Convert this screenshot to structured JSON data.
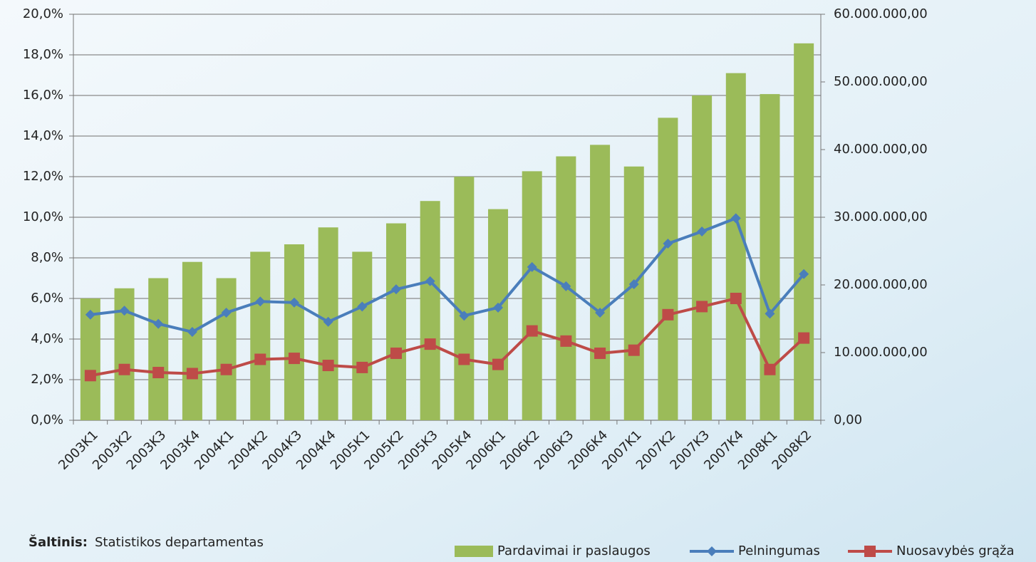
{
  "chart_data": {
    "type": "bar-line",
    "categories": [
      "2003K1",
      "2003K2",
      "2003K3",
      "2003K4",
      "2004K1",
      "2004K2",
      "2004K3",
      "2004K4",
      "2005K1",
      "2005K2",
      "2005K3",
      "2005K4",
      "2006K1",
      "2006K2",
      "2006K3",
      "2006K4",
      "2007K1",
      "2007K2",
      "2007K3",
      "2007K4",
      "2008K1",
      "2008K2"
    ],
    "series": [
      {
        "name": "Pardavimai ir paslaugos",
        "type": "bar",
        "axis": "y2",
        "color": "#9bbb59",
        "values": [
          18000000,
          19500000,
          21000000,
          23400000,
          21000000,
          24900000,
          26000000,
          28500000,
          24900000,
          29100000,
          32400000,
          36000000,
          31200000,
          36800000,
          39000000,
          40700000,
          37500000,
          44700000,
          48000000,
          51300000,
          48200000,
          55700000
        ]
      },
      {
        "name": "Pelningumas",
        "type": "line",
        "axis": "y",
        "color": "#4a7ebb",
        "marker": "diamond",
        "values": [
          5.2,
          5.4,
          4.75,
          4.35,
          5.3,
          5.85,
          5.8,
          4.85,
          5.6,
          6.45,
          6.85,
          5.15,
          5.55,
          7.55,
          6.6,
          5.3,
          6.7,
          8.7,
          9.3,
          9.95,
          5.25,
          7.2
        ]
      },
      {
        "name": "Nuosavybės grąža",
        "type": "line",
        "axis": "y",
        "color": "#be4b48",
        "marker": "square",
        "values": [
          2.2,
          2.5,
          2.35,
          2.3,
          2.5,
          3.0,
          3.05,
          2.7,
          2.6,
          3.3,
          3.75,
          3.0,
          2.75,
          4.4,
          3.9,
          3.3,
          3.45,
          5.2,
          5.6,
          6.0,
          2.5,
          4.05
        ]
      }
    ],
    "ylim": [
      0,
      20
    ],
    "yticks": [
      {
        "value": 0,
        "label": "0,0%"
      },
      {
        "value": 2,
        "label": "2,0%"
      },
      {
        "value": 4,
        "label": "4,0%"
      },
      {
        "value": 6,
        "label": "6,0%"
      },
      {
        "value": 8,
        "label": "8,0%"
      },
      {
        "value": 10,
        "label": "10,0%"
      },
      {
        "value": 12,
        "label": "12,0%"
      },
      {
        "value": 14,
        "label": "14,0%"
      },
      {
        "value": 16,
        "label": "16,0%"
      },
      {
        "value": 18,
        "label": "18,0%"
      },
      {
        "value": 20,
        "label": "20,0%"
      }
    ],
    "y2lim": [
      0,
      60000000
    ],
    "y2ticks": [
      {
        "value": 0,
        "label": "0,00"
      },
      {
        "value": 10000000,
        "label": "10.000.000,00"
      },
      {
        "value": 20000000,
        "label": "20.000.000,00"
      },
      {
        "value": 30000000,
        "label": "30.000.000,00"
      },
      {
        "value": 40000000,
        "label": "40.000.000,00"
      },
      {
        "value": 50000000,
        "label": "50.000.000,00"
      },
      {
        "value": 60000000,
        "label": "60.000.000,00"
      }
    ],
    "grid": true,
    "legend": "bottom-right",
    "source_label": "Šaltinis:",
    "source_text": "Statistikos departamentas"
  }
}
